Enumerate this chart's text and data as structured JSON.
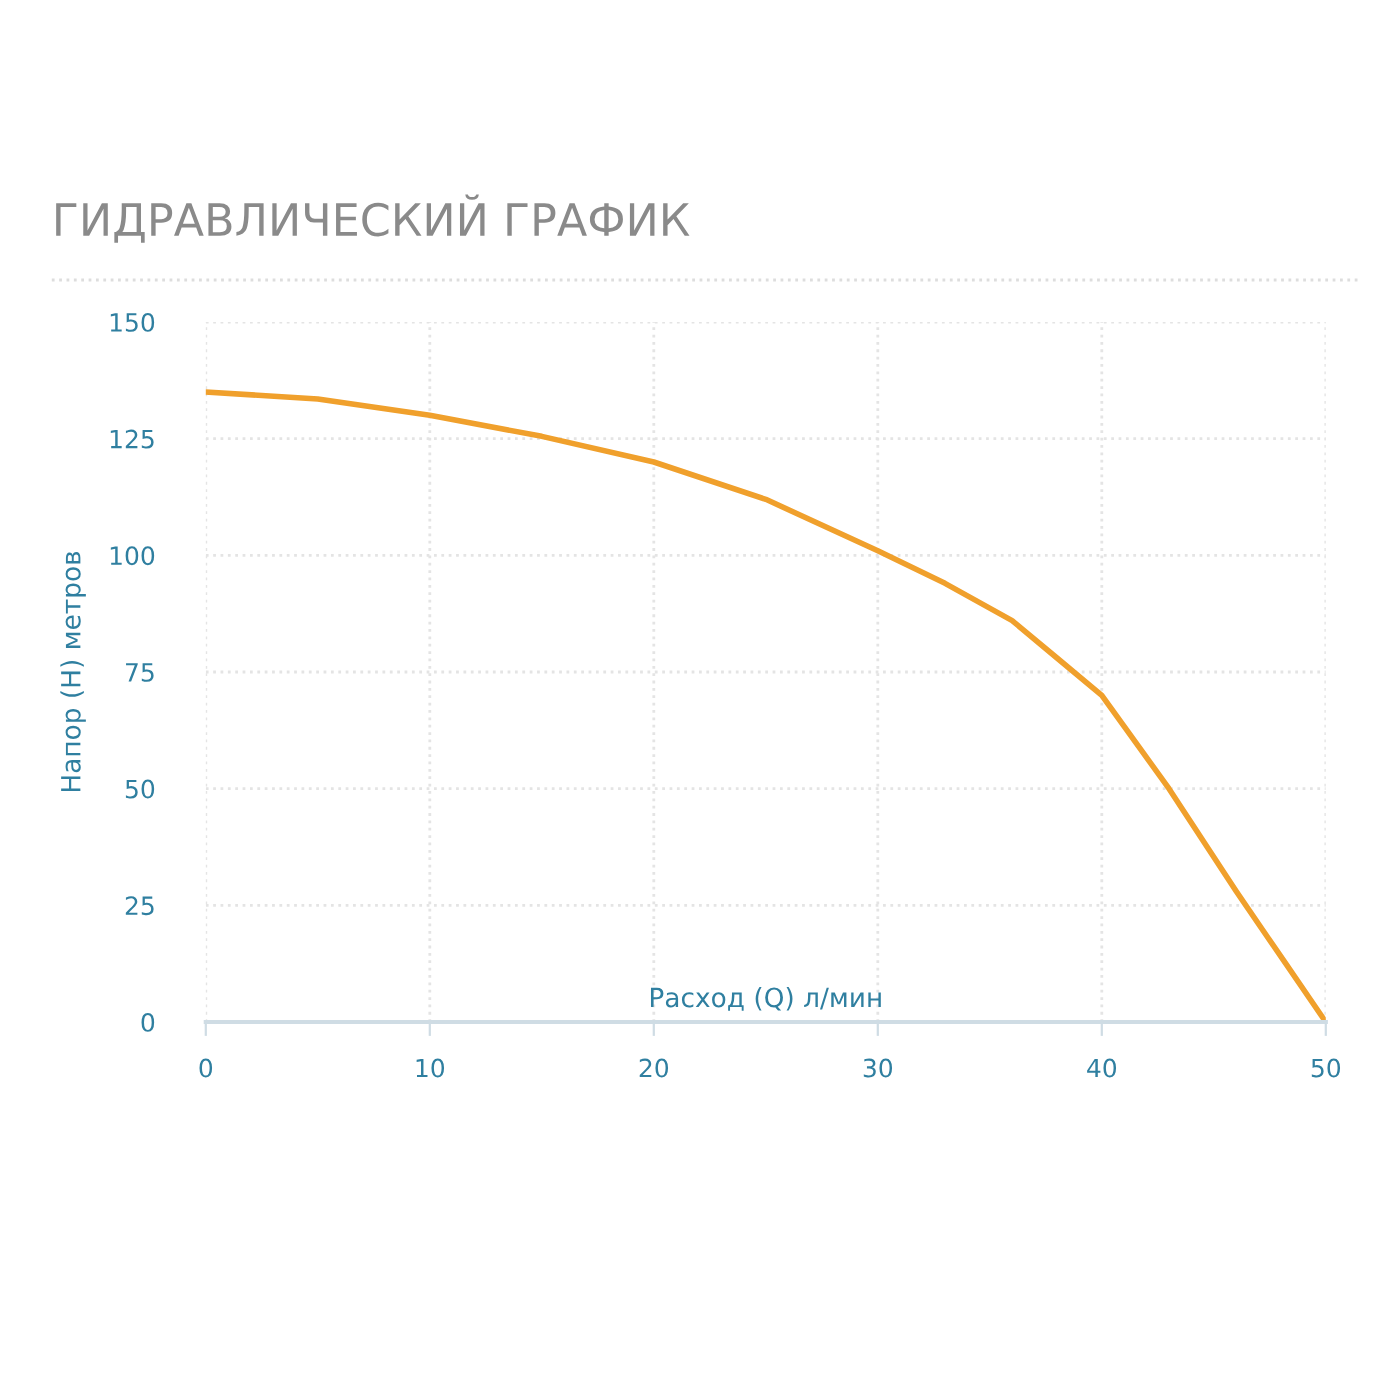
{
  "chart_data": {
    "type": "line",
    "title": "ГИДРАВЛИЧЕСКИЙ ГРАФИК",
    "xlabel": "Расход (Q) л/мин",
    "ylabel": "Напор (H) метров",
    "x": [
      0,
      5,
      10,
      15,
      20,
      25,
      30,
      33,
      36,
      38,
      40,
      43,
      46,
      48,
      50
    ],
    "series": [
      {
        "color": "#f0a02c",
        "values": [
          135,
          133.5,
          130,
          125.5,
          120,
          112,
          101,
          94,
          86,
          78,
          70,
          50,
          28,
          14,
          0
        ]
      }
    ],
    "xlim": [
      0,
      50
    ],
    "xticks": [
      0,
      10,
      20,
      30,
      40,
      50
    ],
    "ylim": [
      0,
      150
    ],
    "yticks": [
      0,
      25,
      50,
      75,
      100,
      125,
      150
    ],
    "grid": true,
    "legend": false,
    "marker": "none",
    "line_style": "solid"
  }
}
